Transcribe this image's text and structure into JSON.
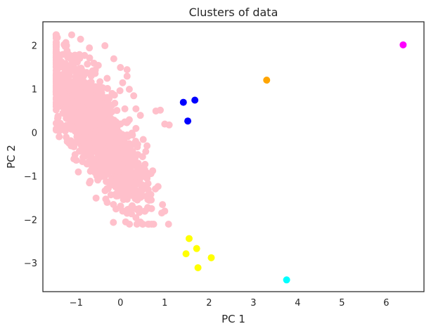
{
  "chart_data": {
    "type": "scatter",
    "title": "Clusters of data",
    "xlabel": "PC 1",
    "ylabel": "PC 2",
    "xlim": [
      -1.75,
      6.85
    ],
    "ylim": [
      -3.65,
      2.55
    ],
    "xticks": [
      -1,
      0,
      1,
      2,
      3,
      4,
      5,
      6
    ],
    "yticks": [
      -3,
      -2,
      -1,
      0,
      1,
      2
    ],
    "grid": false,
    "legend": "none",
    "series": [
      {
        "color": "#ffc0cb",
        "points": [
          [
            -1.3,
            1.8
          ],
          [
            -1.1,
            2.25
          ],
          [
            -0.9,
            2.15
          ],
          [
            -0.7,
            1.95
          ],
          [
            -0.5,
            1.55
          ],
          [
            -0.3,
            1.25
          ],
          [
            -1.45,
            1.05
          ],
          [
            -1.42,
            0.65
          ],
          [
            -1.35,
            0.2
          ],
          [
            -1.2,
            -0.2
          ],
          [
            -1.05,
            -0.6
          ],
          [
            -0.95,
            -0.9
          ],
          [
            -0.7,
            -1.15
          ],
          [
            -0.55,
            -1.5
          ],
          [
            -0.3,
            -1.6
          ],
          [
            -0.1,
            -1.75
          ],
          [
            0.05,
            -1.8
          ],
          [
            0.15,
            -1.85
          ],
          [
            0.35,
            -1.95
          ],
          [
            0.45,
            -2.05
          ],
          [
            0.5,
            -2.1
          ],
          [
            0.75,
            -2.1
          ],
          [
            0.95,
            -1.65
          ],
          [
            1.0,
            -1.8
          ],
          [
            0.55,
            -1.8
          ],
          [
            0.5,
            -1.45
          ],
          [
            0.3,
            -1.35
          ],
          [
            0.5,
            -1.2
          ],
          [
            0.6,
            -1.05
          ],
          [
            0.55,
            -0.85
          ],
          [
            0.4,
            -0.7
          ],
          [
            0.5,
            -0.55
          ],
          [
            0.25,
            -0.45
          ],
          [
            0.2,
            -0.25
          ],
          [
            0.15,
            -0.05
          ],
          [
            0.35,
            0.1
          ],
          [
            0.2,
            0.3
          ],
          [
            0.45,
            0.4
          ],
          [
            0.35,
            0.55
          ],
          [
            0.3,
            0.85
          ],
          [
            0.2,
            1.0
          ],
          [
            0.15,
            1.3
          ],
          [
            0.0,
            1.5
          ],
          [
            -0.15,
            1.7
          ],
          [
            0.15,
            1.45
          ],
          [
            0.05,
            1.15
          ],
          [
            -0.3,
            0.6
          ],
          [
            -0.6,
            0.3
          ],
          [
            -0.9,
            0.9
          ],
          [
            -0.75,
            0.1
          ],
          [
            -0.45,
            -0.3
          ],
          [
            -0.25,
            -0.8
          ],
          [
            -0.1,
            -1.1
          ],
          [
            0.1,
            -1.35
          ],
          [
            0.8,
            0.5
          ],
          [
            0.9,
            0.52
          ],
          [
            1.0,
            0.2
          ],
          [
            1.1,
            0.18
          ],
          [
            0.6,
            -0.3
          ],
          [
            0.35,
            -1.0
          ],
          [
            -0.2,
            0.05
          ],
          [
            -0.5,
            1.0
          ],
          [
            -1.0,
            1.3
          ],
          [
            -1.25,
            1.5
          ],
          [
            -1.3,
            0.45
          ],
          [
            -0.8,
            -0.35
          ],
          [
            -0.6,
            1.6
          ],
          [
            -0.35,
            2.0
          ],
          [
            -0.95,
            0.0
          ],
          [
            -0.4,
            -1.0
          ],
          [
            0.0,
            -0.5
          ],
          [
            0.1,
            0.55
          ]
        ],
        "extent": {
          "x": [
            -1.45,
            1.1
          ],
          "y": [
            -2.1,
            2.25
          ]
        },
        "approx_count": 1600
      },
      {
        "color": "#0000ff",
        "points": [
          [
            1.42,
            0.7
          ],
          [
            1.68,
            0.75
          ],
          [
            1.52,
            0.27
          ]
        ]
      },
      {
        "color": "#ffa500",
        "points": [
          [
            3.3,
            1.21
          ]
        ]
      },
      {
        "color": "#ff00ff",
        "points": [
          [
            6.38,
            2.02
          ]
        ]
      },
      {
        "color": "#ffff00",
        "points": [
          [
            1.55,
            -2.43
          ],
          [
            1.72,
            -2.66
          ],
          [
            1.48,
            -2.78
          ],
          [
            2.05,
            -2.87
          ],
          [
            1.75,
            -3.1
          ]
        ]
      },
      {
        "color": "#00ffff",
        "points": [
          [
            3.75,
            -3.38
          ]
        ]
      }
    ]
  }
}
